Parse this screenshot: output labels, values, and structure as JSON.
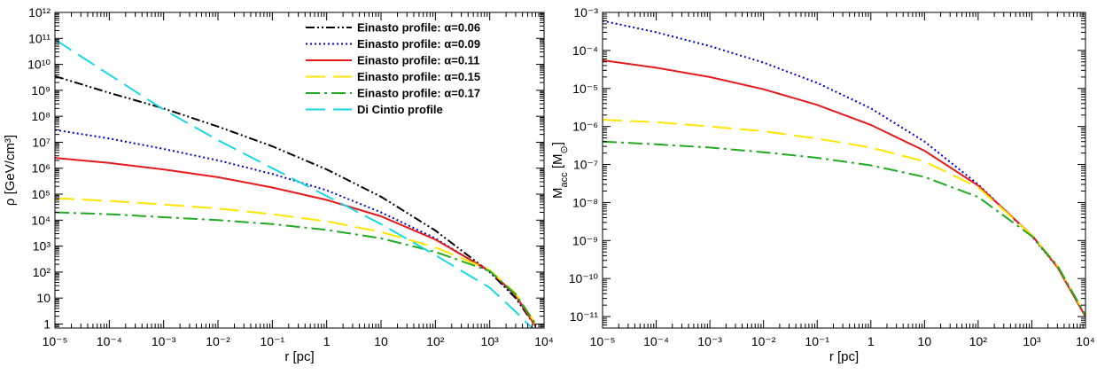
{
  "chart_data": [
    {
      "type": "line",
      "xlabel": "r [pc]",
      "ylabel": "ρ [GeV/cm³]",
      "xscale": "log",
      "yscale": "log",
      "xlim": [
        1e-05,
        10000.0
      ],
      "ylim": [
        0.7,
        1000000000000.0
      ],
      "x_tick_labels": [
        "10⁻⁵",
        "10⁻⁴",
        "10⁻³",
        "10⁻²",
        "10⁻¹",
        "1",
        "10",
        "10²",
        "10³",
        "10⁴"
      ],
      "y_tick_labels": [
        "1",
        "10",
        "10²",
        "10³",
        "10⁴",
        "10⁵",
        "10⁶",
        "10⁷",
        "10⁸",
        "10⁹",
        "10¹⁰",
        "10¹¹",
        "10¹²"
      ],
      "grid": false,
      "legend_position": "top-right",
      "series": [
        {
          "name": "Einasto profile: α=0.06",
          "color": "#000000",
          "dash": "dash-dot-dot",
          "x": [
            1e-05,
            0.0001,
            0.001,
            0.01,
            0.1,
            1,
            10,
            100,
            1000,
            3000,
            7000
          ],
          "y": [
            3500000000.0,
            800000000.0,
            200000000.0,
            40000000.0,
            7000000.0,
            900000.0,
            80000.0,
            4000.0,
            100,
            10,
            0.8
          ]
        },
        {
          "name": "Einasto profile: α=0.09",
          "color": "#0000cc",
          "dash": "dotted",
          "x": [
            1e-05,
            0.0001,
            0.001,
            0.01,
            0.1,
            1,
            10,
            100,
            1000,
            3000,
            7000
          ],
          "y": [
            30000000.0,
            14000000.0,
            5500000.0,
            2000000.0,
            600000.0,
            140000.0,
            20000.0,
            2000.0,
            100,
            12,
            0.8
          ]
        },
        {
          "name": "Einasto profile: α=0.11",
          "color": "#e41a1c",
          "dash": "solid",
          "x": [
            1e-05,
            0.0001,
            0.001,
            0.01,
            0.1,
            1,
            10,
            100,
            1000,
            3000,
            7000
          ],
          "y": [
            2500000.0,
            1600000.0,
            900000.0,
            450000.0,
            180000.0,
            60000.0,
            14000.0,
            1800.0,
            110,
            13,
            0.8
          ]
        },
        {
          "name": "Einasto profile: α=0.15",
          "color": "#ffe600",
          "dash": "long-dash",
          "x": [
            1e-05,
            0.0001,
            0.001,
            0.01,
            0.1,
            1,
            10,
            100,
            1000,
            3000,
            7000
          ],
          "y": [
            70000.0,
            55000.0,
            40000.0,
            28000.0,
            17000.0,
            9000.0,
            3500.0,
            900.0,
            120,
            15,
            1
          ]
        },
        {
          "name": "Einasto profile: α=0.17",
          "color": "#22aa22",
          "dash": "dash-dot",
          "x": [
            1e-05,
            0.0001,
            0.001,
            0.01,
            0.1,
            1,
            10,
            100,
            1000,
            3000,
            7000
          ],
          "y": [
            20000.0,
            17000.0,
            13000.0,
            10000.0,
            7000.0,
            4200.0,
            2000.0,
            600.0,
            110,
            14,
            1
          ]
        },
        {
          "name": "Di Cintio profile",
          "color": "#1ad7e6",
          "dash": "long-dash",
          "x": [
            1e-05,
            0.0001,
            0.001,
            0.01,
            0.1,
            1,
            10,
            100,
            1000,
            3000,
            6000
          ],
          "y": [
            90000000000.0,
            4000000000.0,
            180000000.0,
            12000000.0,
            1000000.0,
            85000.0,
            7000.0,
            450.0,
            25,
            3,
            0.7
          ]
        }
      ]
    },
    {
      "type": "line",
      "xlabel": "r [pc]",
      "ylabel": "M_acc [M_⊙]",
      "ylabel_main": "M",
      "ylabel_sub": "acc",
      "ylabel_unit_open": " [M",
      "ylabel_unit_sub": "⊙",
      "ylabel_unit_close": "]",
      "xscale": "log",
      "yscale": "log",
      "xlim": [
        1e-05,
        10000.0
      ],
      "ylim": [
        5e-12,
        0.001
      ],
      "x_tick_labels": [
        "10⁻⁵",
        "10⁻⁴",
        "10⁻³",
        "10⁻²",
        "10⁻¹",
        "1",
        "10",
        "10²",
        "10³",
        "10⁴"
      ],
      "y_tick_labels": [
        "10⁻¹¹",
        "10⁻¹⁰",
        "10⁻⁹",
        "10⁻⁸",
        "10⁻⁷",
        "10⁻⁶",
        "10⁻⁵",
        "10⁻⁴",
        "10⁻³"
      ],
      "grid": false,
      "series": [
        {
          "color": "#0000cc",
          "dash": "dotted",
          "x": [
            1e-05,
            0.0001,
            0.001,
            0.01,
            0.1,
            1,
            10,
            100,
            1000,
            3000,
            10000.0
          ],
          "y": [
            0.0006,
            0.0003,
            0.00013,
            4.8e-05,
            1.4e-05,
            3e-06,
            4e-07,
            3e-08,
            1.3e-09,
            2e-10,
            1e-11
          ]
        },
        {
          "color": "#e41a1c",
          "dash": "solid",
          "x": [
            1e-05,
            0.0001,
            0.001,
            0.01,
            0.1,
            1,
            10,
            100,
            1000,
            3000,
            10000.0
          ],
          "y": [
            5.5e-05,
            3.5e-05,
            2e-05,
            9.5e-06,
            3.7e-06,
            1.1e-06,
            2.3e-07,
            2.8e-08,
            1.4e-09,
            2e-10,
            1e-11
          ]
        },
        {
          "color": "#ffe600",
          "dash": "long-dash",
          "x": [
            1e-05,
            0.0001,
            0.001,
            0.01,
            0.1,
            1,
            10,
            100,
            1000,
            3000,
            10000.0
          ],
          "y": [
            1.5e-06,
            1.3e-06,
            1e-06,
            7.5e-07,
            4.8e-07,
            2.8e-07,
            1.2e-07,
            2.5e-08,
            1.4e-09,
            2.2e-10,
            1.1e-11
          ]
        },
        {
          "color": "#22aa22",
          "dash": "dash-dot",
          "x": [
            1e-05,
            0.0001,
            0.001,
            0.01,
            0.1,
            1,
            10,
            100,
            1000,
            3000,
            10000.0
          ],
          "y": [
            4e-07,
            3.4e-07,
            2.8e-07,
            2.1e-07,
            1.5e-07,
            9.5e-08,
            4.7e-08,
            1.4e-08,
            1.3e-09,
            2.2e-10,
            1.1e-11
          ]
        }
      ]
    }
  ]
}
